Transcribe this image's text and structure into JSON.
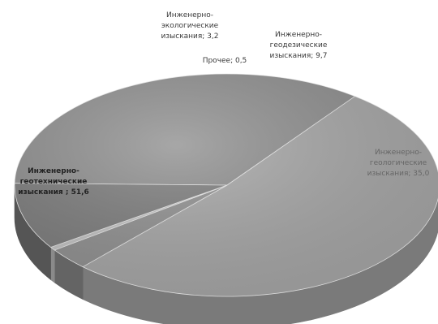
{
  "chart_data": {
    "type": "pie",
    "title": "",
    "slices": [
      {
        "label": "Инженерно-\nгеологические\nизыскания; 35,0",
        "value": 35.0,
        "color": "#8e8e8e",
        "side": "#5e5e5e"
      },
      {
        "label": "Инженерно-\nгеотехнические\nизыскания ; 51,6",
        "value": 51.6,
        "color": "#a6a6a6",
        "side": "#7a7a7a"
      },
      {
        "label": "Инженерно-\nэкологические\nизыскания; 3,2",
        "value": 3.2,
        "color": "#909090",
        "side": "#646464"
      },
      {
        "label": "Прочее; 0,5",
        "value": 0.5,
        "color": "#c2c2c2",
        "side": "#8a8a8a"
      },
      {
        "label": "Инженерно-\nгеодезические\nизыскания; 9,7",
        "value": 9.7,
        "color": "#7c7c7c",
        "side": "#555555"
      }
    ],
    "legend": "none"
  }
}
